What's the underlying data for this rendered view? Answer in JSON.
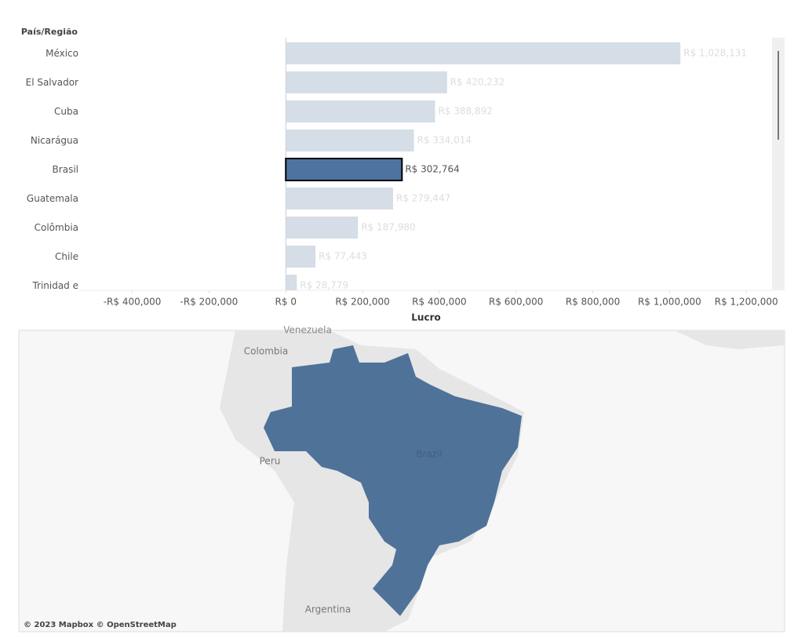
{
  "chart_data": {
    "type": "bar",
    "orientation": "horizontal",
    "category_header": "País/Região",
    "x_label": "Lucro",
    "categories": [
      "México",
      "El Salvador",
      "Cuba",
      "Nicarágua",
      "Brasil",
      "Guatemala",
      "Colômbia",
      "Chile",
      "Trinidad e Tobago"
    ],
    "values": [
      1028131,
      420232,
      388892,
      334014,
      302764,
      279447,
      187980,
      77443,
      28779
    ],
    "value_labels": [
      "R$ 1,028,131",
      "R$ 420,232",
      "R$ 388,892",
      "R$ 334,014",
      "R$ 302,764",
      "R$ 279,447",
      "R$ 187,980",
      "R$ 77,443",
      "R$ 28,779"
    ],
    "color": "#d5dde6",
    "highlight": 4,
    "highlight_color": "#4e73a0",
    "xlim": [
      -530000,
      1265000
    ],
    "xticks": [
      {
        "value": -400000,
        "label": "-R$ 400,000"
      },
      {
        "value": -200000,
        "label": "-R$ 200,000"
      },
      {
        "value": 0,
        "label": "R$ 0"
      },
      {
        "value": 200000,
        "label": "R$ 200,000"
      },
      {
        "value": 400000,
        "label": "R$ 400,000"
      },
      {
        "value": 600000,
        "label": "R$ 600,000"
      },
      {
        "value": 800000,
        "label": "R$ 800,000"
      },
      {
        "value": 1000000,
        "label": "R$ 1,000,000"
      },
      {
        "value": 1200000,
        "label": "R$ 1,200,000"
      }
    ]
  },
  "map": {
    "labels": [
      "Venezuela",
      "Colombia",
      "Peru",
      "Brazil",
      "Argentina"
    ],
    "attribution": "© 2023 Mapbox © OpenStreetMap"
  }
}
